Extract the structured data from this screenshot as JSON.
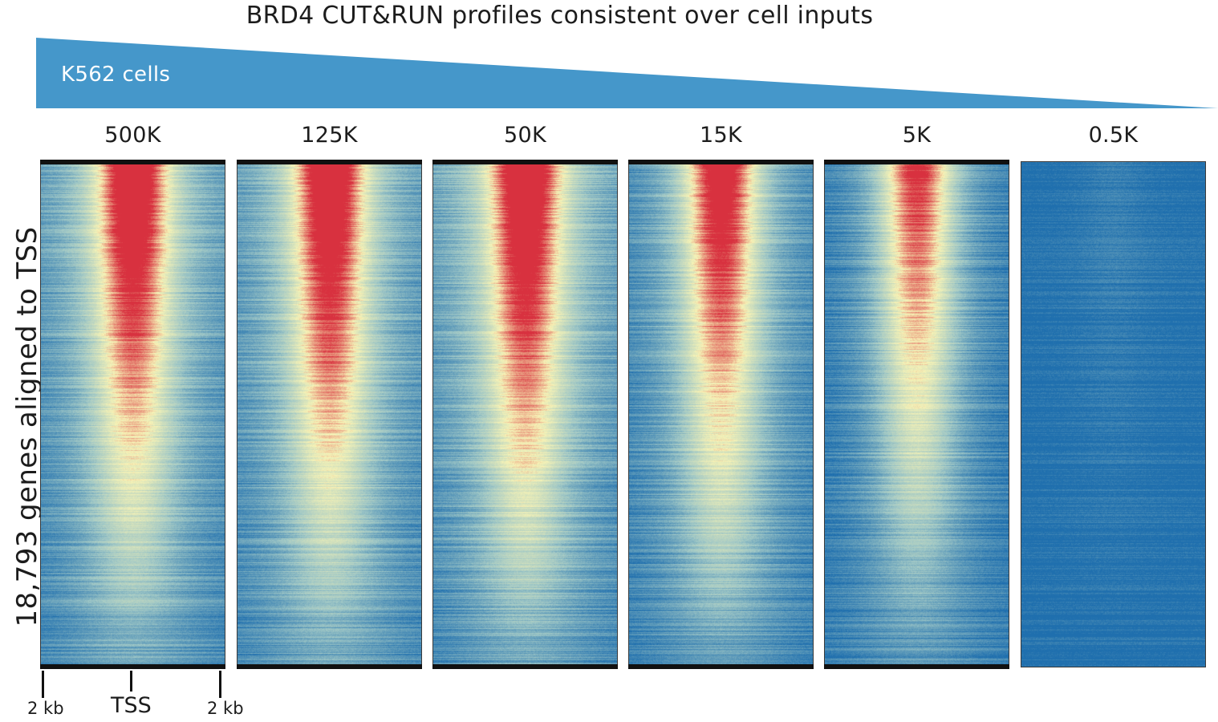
{
  "figure": {
    "title": "BRD4 CUT&RUN profiles consistent over cell inputs",
    "wedge_label": "K562 cells",
    "y_label": "18,793 genes aligned to TSS",
    "wedge_color": "#4597ca"
  },
  "chart_data": {
    "type": "heatmap",
    "title": "BRD4 CUT&RUN profiles consistent over cell inputs",
    "ylabel": "18,793 genes aligned to TSS",
    "xlabel": "",
    "x_ticks": [
      "2 kb",
      "TSS",
      "2 kb"
    ],
    "gene_count": 18793,
    "colormap": [
      "#1f6fae",
      "#9fc7c6",
      "#f7f3b6",
      "#d8313f"
    ],
    "panels": [
      {
        "label": "500K",
        "cells": 500000,
        "peak_intensity": 1.0,
        "background": 0.15
      },
      {
        "label": "125K",
        "cells": 125000,
        "peak_intensity": 1.0,
        "background": 0.15
      },
      {
        "label": "50K",
        "cells": 50000,
        "peak_intensity": 1.0,
        "background": 0.17
      },
      {
        "label": "15K",
        "cells": 15000,
        "peak_intensity": 0.97,
        "background": 0.1
      },
      {
        "label": "5K",
        "cells": 5000,
        "peak_intensity": 0.92,
        "background": 0.04
      },
      {
        "label": "0.5K",
        "cells": 500,
        "peak_intensity": 0.25,
        "background": 0.0
      }
    ]
  }
}
